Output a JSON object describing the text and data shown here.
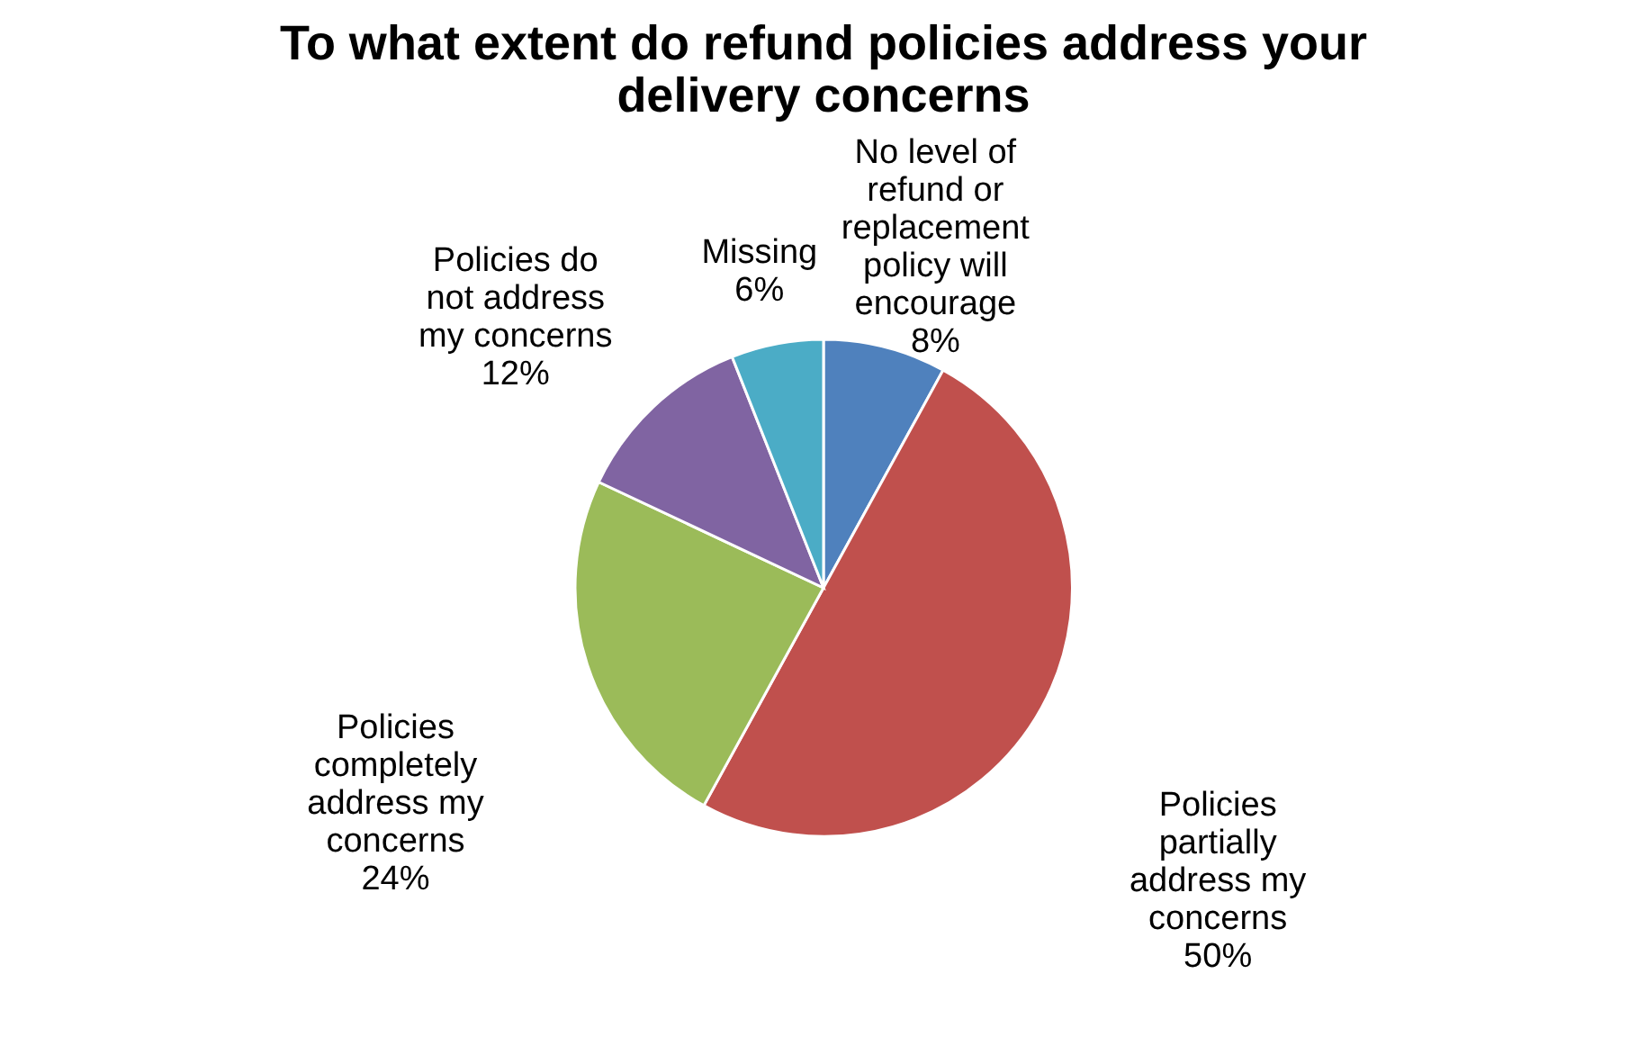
{
  "chart_data": {
    "type": "pie",
    "title": "To what extent do refund policies address your delivery concerns",
    "categories": [
      "No level of refund or replacement policy will encourage",
      "Policies partially address my concerns",
      "Policies completely address my concerns",
      "Policies do not address my concerns",
      "Missing"
    ],
    "values": [
      8,
      50,
      24,
      12,
      6
    ],
    "value_labels": [
      "8%",
      "50%",
      "24%",
      "12%",
      "6%"
    ],
    "colors": [
      "#4f81bd",
      "#c0504d",
      "#9bbb59",
      "#8064a2",
      "#4bacc6"
    ],
    "legend": false
  }
}
